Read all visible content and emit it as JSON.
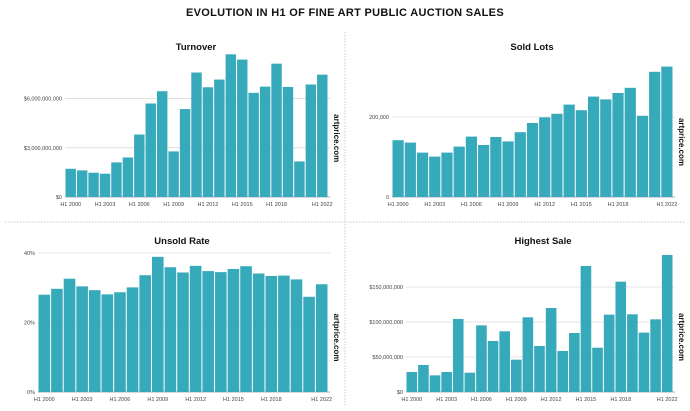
{
  "title": "EVOLUTION IN H1 OF FINE ART PUBLIC AUCTION SALES",
  "watermark": "artprice.com",
  "bar_color": "#36aabb",
  "chart_data": [
    {
      "type": "bar",
      "title": "Turnover",
      "categories": [
        "H1 2000",
        "H1 2001",
        "H1 2002",
        "H1 2003",
        "H1 2004",
        "H1 2005",
        "H1 2006",
        "H1 2007",
        "H1 2008",
        "H1 2009",
        "H1 2010",
        "H1 2011",
        "H1 2012",
        "H1 2013",
        "H1 2014",
        "H1 2015",
        "H1 2016",
        "H1 2017",
        "H1 2018",
        "H1 2019",
        "H1 2020",
        "H1 2021",
        "H1 2022"
      ],
      "x_tick_labels": [
        "H1 2000",
        "H1 2003",
        "H1 2006",
        "H1 2009",
        "H1 2012",
        "H1 2015",
        "H1 2018",
        "H1 2022"
      ],
      "values": [
        1720000000,
        1620000000,
        1480000000,
        1420000000,
        2110000000,
        2410000000,
        3810000000,
        5700000000,
        6450000000,
        2780000000,
        5360000000,
        7590000000,
        6690000000,
        7160000000,
        8700000000,
        8380000000,
        6350000000,
        6730000000,
        8130000000,
        6710000000,
        2170000000,
        6860000000,
        7460000000
      ],
      "y_ticks": [
        0,
        3000000000,
        6000000000
      ],
      "y_tick_labels": [
        "$0",
        "$3,000,000,000",
        "$6,000,000,000"
      ],
      "ylim": [
        0,
        9000000000
      ],
      "grid": true
    },
    {
      "type": "bar",
      "title": "Sold Lots",
      "categories": [
        "H1 2000",
        "H1 2001",
        "H1 2002",
        "H1 2003",
        "H1 2004",
        "H1 2005",
        "H1 2006",
        "H1 2007",
        "H1 2008",
        "H1 2009",
        "H1 2010",
        "H1 2011",
        "H1 2012",
        "H1 2013",
        "H1 2014",
        "H1 2015",
        "H1 2016",
        "H1 2017",
        "H1 2018",
        "H1 2019",
        "H1 2020",
        "H1 2021",
        "H1 2022"
      ],
      "x_tick_labels": [
        "H1 2000",
        "H1 2003",
        "H1 2006",
        "H1 2009",
        "H1 2012",
        "H1 2015",
        "H1 2018",
        "H1 2022"
      ],
      "values": [
        142000,
        136000,
        111000,
        101000,
        111000,
        126000,
        151000,
        130000,
        150000,
        139000,
        162000,
        185000,
        199000,
        208000,
        231000,
        217000,
        251000,
        244000,
        260000,
        273000,
        203000,
        313000,
        326000
      ],
      "y_ticks": [
        0,
        200000
      ],
      "y_tick_labels": [
        "0",
        "200,000"
      ],
      "ylim": [
        0,
        350000
      ],
      "grid": true
    },
    {
      "type": "bar",
      "title": "Unsold Rate",
      "categories": [
        "H1 2000",
        "H1 2001",
        "H1 2002",
        "H1 2003",
        "H1 2004",
        "H1 2005",
        "H1 2006",
        "H1 2007",
        "H1 2008",
        "H1 2009",
        "H1 2010",
        "H1 2011",
        "H1 2012",
        "H1 2013",
        "H1 2014",
        "H1 2015",
        "H1 2016",
        "H1 2017",
        "H1 2018",
        "H1 2019",
        "H1 2020",
        "H1 2021",
        "H1 2022"
      ],
      "x_tick_labels": [
        "H1 2000",
        "H1 2003",
        "H1 2006",
        "H1 2009",
        "H1 2012",
        "H1 2015",
        "H1 2018",
        "H1 2022"
      ],
      "values": [
        28.0,
        29.7,
        32.6,
        30.4,
        29.3,
        28.1,
        28.7,
        30.1,
        33.6,
        38.9,
        35.9,
        34.4,
        36.3,
        34.8,
        34.5,
        35.4,
        36.2,
        34.1,
        33.4,
        33.5,
        32.4,
        27.4,
        31.0
      ],
      "y_ticks": [
        0,
        20,
        40
      ],
      "y_tick_labels": [
        "0%",
        "20%",
        "40%"
      ],
      "ylim": [
        0,
        40
      ],
      "grid": true
    },
    {
      "type": "bar",
      "title": "Highest Sale",
      "categories": [
        "H1 2000",
        "H1 2001",
        "H1 2002",
        "H1 2003",
        "H1 2004",
        "H1 2005",
        "H1 2006",
        "H1 2007",
        "H1 2008",
        "H1 2009",
        "H1 2010",
        "H1 2011",
        "H1 2012",
        "H1 2013",
        "H1 2014",
        "H1 2015",
        "H1 2016",
        "H1 2017",
        "H1 2018",
        "H1 2019",
        "H1 2020",
        "H1 2021",
        "H1 2022"
      ],
      "x_tick_labels": [
        "H1 2000",
        "H1 2003",
        "H1 2006",
        "H1 2009",
        "H1 2012",
        "H1 2015",
        "H1 2018",
        "H1 2022"
      ],
      "values": [
        28600000,
        38600000,
        23800000,
        28600000,
        104300000,
        27600000,
        95200000,
        72900000,
        86700000,
        46200000,
        106700000,
        65700000,
        120000000,
        58600000,
        84300000,
        180000000,
        63300000,
        110500000,
        157600000,
        111000000,
        84800000,
        103800000,
        195700000
      ],
      "y_ticks": [
        0,
        50000000,
        100000000,
        150000000
      ],
      "y_tick_labels": [
        "$0",
        "$50,000,000",
        "$100,000,000",
        "$150,000,000"
      ],
      "ylim": [
        0,
        200000000
      ],
      "grid": true
    }
  ]
}
